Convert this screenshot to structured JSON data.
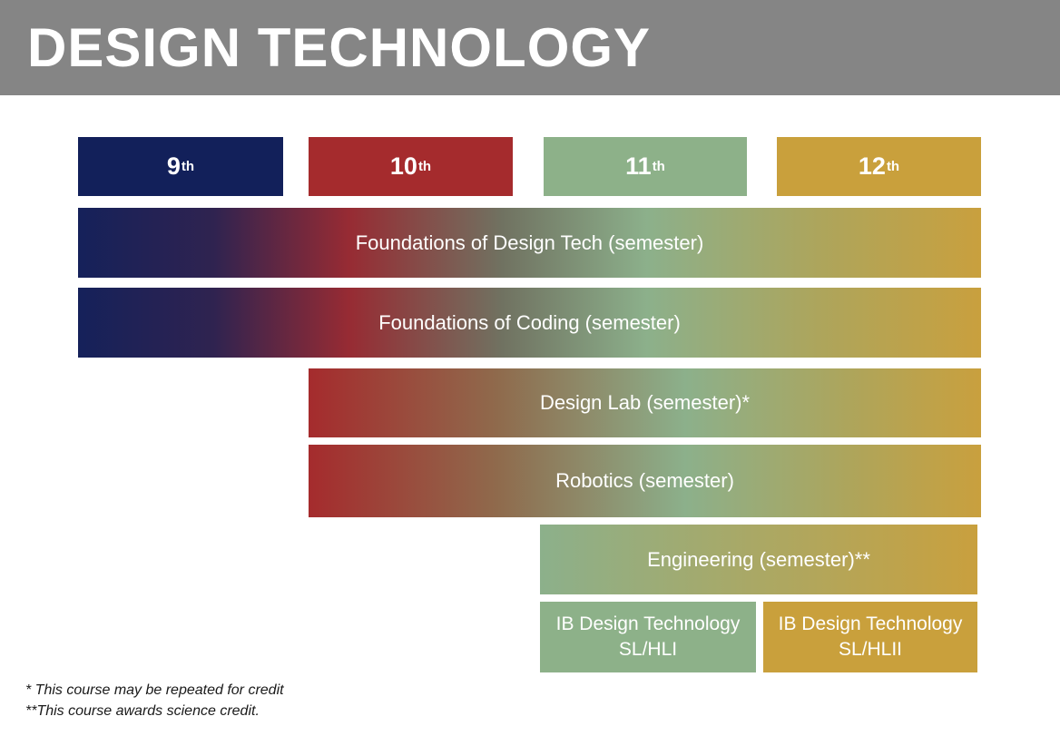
{
  "header": {
    "title": "DESIGN TECHNOLOGY",
    "bg_color": "#858585",
    "text_color": "#ffffff"
  },
  "grades": [
    {
      "num": "9",
      "suffix": "th",
      "color": "#12205a"
    },
    {
      "num": "10",
      "suffix": "th",
      "color": "#a52b2d"
    },
    {
      "num": "11",
      "suffix": "th",
      "color": "#8db189"
    },
    {
      "num": "12",
      "suffix": "th",
      "color": "#c9a03c"
    }
  ],
  "courses": [
    {
      "label": "Foundations of Design Tech (semester)",
      "span": "9-12"
    },
    {
      "label": "Foundations of Coding (semester)",
      "span": "9-12"
    },
    {
      "label": "Design Lab (semester)*",
      "span": "10-12"
    },
    {
      "label": "Robotics (semester)",
      "span": "10-12"
    },
    {
      "label": "Engineering (semester)**",
      "span": "11-12"
    },
    {
      "label": "IB Design Technology SL/HLI",
      "span": "11",
      "color": "#8db189"
    },
    {
      "label": "IB Design Technology SL/HLII",
      "span": "12",
      "color": "#c9a03c"
    }
  ],
  "footnotes": [
    "* This course may be repeated for credit",
    "**This course awards science credit."
  ]
}
